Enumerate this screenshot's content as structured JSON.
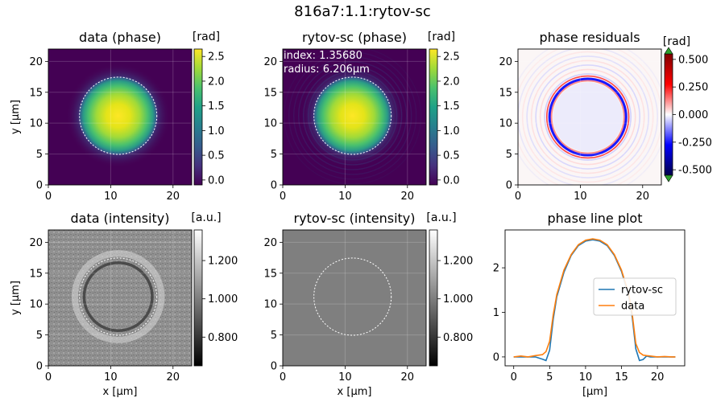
{
  "suptitle": "816a7:1.1:rytov-sc",
  "chart_data": [
    {
      "id": "data-phase",
      "type": "heatmap",
      "title": "data (phase)",
      "xlabel": "",
      "ylabel": "y [µm]",
      "xlim": [
        0,
        23
      ],
      "ylim": [
        0,
        22
      ],
      "xticks": [
        0,
        10,
        20
      ],
      "yticks": [
        0,
        5,
        10,
        15,
        20
      ],
      "colormap": "viridis",
      "colorbar": {
        "label": "[rad]",
        "range": [
          -0.1,
          2.65
        ],
        "ticks": [
          "0.0",
          "0.5",
          "1.0",
          "1.5",
          "2.0",
          "2.5"
        ],
        "tick_values": [
          0,
          0.5,
          1.0,
          1.5,
          2.0,
          2.5
        ]
      },
      "object": {
        "center": [
          11.2,
          11.2
        ],
        "radius": 6.206,
        "peak": 2.62
      },
      "contour": true
    },
    {
      "id": "fit-phase",
      "type": "heatmap",
      "title": "rytov-sc (phase)",
      "xlabel": "",
      "ylabel": "",
      "xlim": [
        0,
        23
      ],
      "ylim": [
        0,
        22
      ],
      "xticks": [
        0,
        10,
        20
      ],
      "yticks": [
        0,
        5,
        10,
        15,
        20
      ],
      "colormap": "viridis",
      "colorbar": {
        "label": "[rad]",
        "range": [
          -0.1,
          2.65
        ],
        "ticks": [
          "0.0",
          "0.5",
          "1.0",
          "1.5",
          "2.0",
          "2.5"
        ],
        "tick_values": [
          0,
          0.5,
          1.0,
          1.5,
          2.0,
          2.5
        ]
      },
      "object": {
        "center": [
          11.2,
          11.2
        ],
        "radius": 6.206,
        "peak": 2.62
      },
      "contour": true,
      "annotations": [
        "index: 1.35680",
        "radius: 6.206µm"
      ]
    },
    {
      "id": "residuals",
      "type": "heatmap",
      "title": "phase residuals",
      "xlabel": "",
      "ylabel": "",
      "xlim": [
        0,
        23
      ],
      "ylim": [
        0,
        22
      ],
      "xticks": [
        0,
        10,
        20
      ],
      "yticks": [
        0,
        5,
        10,
        15,
        20
      ],
      "colormap": "seismic",
      "colorbar": {
        "label": "[rad]",
        "range": [
          -0.55,
          0.55
        ],
        "ticks": [
          "0.500",
          "0.250",
          "0.000",
          "-0.250",
          "-0.500"
        ],
        "tick_values": [
          0.5,
          0.25,
          0,
          -0.25,
          -0.5
        ],
        "extend": "both"
      }
    },
    {
      "id": "data-intensity",
      "type": "heatmap",
      "title": "data (intensity)",
      "xlabel": "x [µm]",
      "ylabel": "y [µm]",
      "xlim": [
        0,
        23
      ],
      "ylim": [
        0,
        22
      ],
      "xticks": [
        0,
        10,
        20
      ],
      "yticks": [
        0,
        5,
        10,
        15,
        20
      ],
      "colormap": "gray",
      "colorbar": {
        "label": "[a.u.]",
        "range": [
          0.65,
          1.36
        ],
        "ticks": [
          "0.800",
          "1.000",
          "1.200"
        ],
        "tick_values": [
          0.8,
          1.0,
          1.2
        ]
      },
      "contour": true
    },
    {
      "id": "fit-intensity",
      "type": "heatmap",
      "title": "rytov-sc (intensity)",
      "xlabel": "x [µm]",
      "ylabel": "",
      "xlim": [
        0,
        23
      ],
      "ylim": [
        0,
        22
      ],
      "xticks": [
        0,
        10,
        20
      ],
      "yticks": [
        0,
        5,
        10,
        15,
        20
      ],
      "colormap": "gray",
      "colorbar": {
        "label": "[a.u.]",
        "range": [
          0.65,
          1.36
        ],
        "ticks": [
          "0.800",
          "1.000",
          "1.200"
        ],
        "tick_values": [
          0.8,
          1.0,
          1.2
        ]
      },
      "contour": true
    },
    {
      "id": "line-plot",
      "type": "line",
      "title": "phase line plot",
      "xlabel": "[µm]",
      "ylabel": "",
      "xlim": [
        -1.2,
        23.8
      ],
      "ylim": [
        -0.2,
        2.85
      ],
      "xticks": [
        0,
        5,
        10,
        15,
        20
      ],
      "yticks": [
        0,
        1,
        2
      ],
      "legend": "center-right",
      "series": [
        {
          "name": "rytov-sc",
          "color": "#1f77b4",
          "x": [
            0,
            1,
            2,
            3,
            4,
            4.5,
            5,
            5.5,
            6,
            7,
            8,
            9,
            10,
            11,
            12,
            13,
            14,
            15,
            16,
            16.5,
            17,
            17.5,
            18,
            18.5,
            19,
            20,
            21,
            22,
            22.5
          ],
          "y": [
            0.0,
            0.0,
            0.0,
            0.0,
            -0.05,
            -0.08,
            0.15,
            0.85,
            1.35,
            1.9,
            2.28,
            2.5,
            2.6,
            2.63,
            2.6,
            2.5,
            2.28,
            1.92,
            1.38,
            0.88,
            0.18,
            -0.08,
            -0.06,
            0.02,
            0.0,
            0.0,
            0.0,
            0.0,
            0.0
          ]
        },
        {
          "name": "data",
          "color": "#ff7f0e",
          "x": [
            0,
            1,
            2,
            3,
            4,
            4.5,
            5,
            5.5,
            6,
            7,
            8,
            9,
            10,
            11,
            12,
            13,
            14,
            15,
            16,
            16.5,
            17,
            17.5,
            18,
            18.5,
            19,
            20,
            21,
            22,
            22.5
          ],
          "y": [
            0.0,
            0.02,
            0.0,
            0.03,
            0.05,
            0.12,
            0.35,
            0.95,
            1.4,
            1.95,
            2.3,
            2.52,
            2.62,
            2.65,
            2.62,
            2.52,
            2.3,
            1.95,
            1.42,
            0.95,
            0.3,
            0.1,
            0.04,
            0.03,
            0.02,
            0.0,
            0.01,
            0.0,
            0.0
          ]
        }
      ]
    }
  ]
}
